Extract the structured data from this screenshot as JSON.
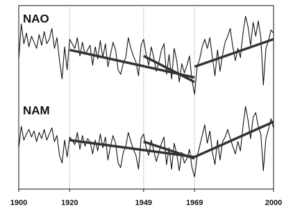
{
  "chart_data": [
    {
      "type": "line",
      "xlim": [
        1900,
        2000
      ],
      "ylim": [
        -3,
        3
      ],
      "vlines": [
        1920,
        1949,
        1969
      ],
      "x": [
        1900,
        1901,
        1902,
        1903,
        1904,
        1905,
        1906,
        1907,
        1908,
        1909,
        1910,
        1911,
        1912,
        1913,
        1914,
        1915,
        1916,
        1917,
        1918,
        1919,
        1920,
        1921,
        1922,
        1923,
        1924,
        1925,
        1926,
        1927,
        1928,
        1929,
        1930,
        1931,
        1932,
        1933,
        1934,
        1935,
        1936,
        1937,
        1938,
        1939,
        1940,
        1941,
        1942,
        1943,
        1944,
        1945,
        1946,
        1947,
        1948,
        1949,
        1950,
        1951,
        1952,
        1953,
        1954,
        1955,
        1956,
        1957,
        1958,
        1959,
        1960,
        1961,
        1962,
        1963,
        1964,
        1965,
        1966,
        1967,
        1968,
        1969,
        1970,
        1971,
        1972,
        1973,
        1974,
        1975,
        1976,
        1977,
        1978,
        1979,
        1980,
        1981,
        1982,
        1983,
        1984,
        1985,
        1986,
        1987,
        1988,
        1989,
        1990,
        1991,
        1992,
        1993,
        1994,
        1995,
        1996,
        1997,
        1998,
        1999,
        2000
      ],
      "series": [
        {
          "name": "NAO",
          "color": "#111111",
          "values": [
            -0.5,
            1.8,
            0.5,
            1.2,
            0.3,
            1.0,
            0.6,
            0.2,
            1.1,
            0.4,
            1.3,
            0.5,
            0.8,
            1.5,
            0.2,
            0.9,
            -0.6,
            -1.8,
            0.3,
            -1.2,
            0.8,
            0.5,
            0.2,
            0.9,
            -0.3,
            0.6,
            -0.2,
            0.1,
            0.4,
            -0.9,
            0.3,
            -0.5,
            0.7,
            -0.4,
            0.5,
            -1.0,
            -0.2,
            0.6,
            0.1,
            -1.2,
            -1.5,
            -0.8,
            -0.4,
            0.9,
            0.2,
            -0.3,
            -0.7,
            -1.6,
            0.4,
            0.8,
            -0.2,
            -0.9,
            0.3,
            -0.4,
            -1.3,
            -0.7,
            0.1,
            0.5,
            -1.5,
            -0.2,
            -1.8,
            0.2,
            -0.6,
            -2.0,
            -0.8,
            -1.4,
            -0.9,
            -0.3,
            -1.9,
            -2.8,
            -1.0,
            -0.5,
            0.3,
            0.8,
            0.2,
            0.9,
            -0.4,
            -1.6,
            0.1,
            -1.3,
            -0.2,
            0.6,
            1.0,
            1.5,
            0.3,
            -0.6,
            0.2,
            -0.4,
            1.2,
            2.3,
            1.6,
            0.4,
            1.9,
            1.0,
            2.0,
            0.9,
            -2.2,
            0.2,
            0.7,
            1.4,
            1.2
          ]
        }
      ],
      "trends": [
        {
          "color": "#333333",
          "x": [
            1920,
            1969
          ],
          "values": [
            0.1,
            -1.7
          ]
        },
        {
          "color": "#333333",
          "x": [
            1949,
            1969
          ],
          "values": [
            -0.3,
            -2.0
          ]
        },
        {
          "color": "#333333",
          "x": [
            1969,
            2000
          ],
          "values": [
            -1.0,
            0.8
          ]
        }
      ]
    },
    {
      "type": "line",
      "xlim": [
        1900,
        2000
      ],
      "ylim": [
        -3,
        3
      ],
      "vlines": [
        1920,
        1949,
        1969
      ],
      "xticks": [
        1900,
        1920,
        1949,
        1969,
        2000
      ],
      "x": [
        1900,
        1901,
        1902,
        1903,
        1904,
        1905,
        1906,
        1907,
        1908,
        1909,
        1910,
        1911,
        1912,
        1913,
        1914,
        1915,
        1916,
        1917,
        1918,
        1919,
        1920,
        1921,
        1922,
        1923,
        1924,
        1925,
        1926,
        1927,
        1928,
        1929,
        1930,
        1931,
        1932,
        1933,
        1934,
        1935,
        1936,
        1937,
        1938,
        1939,
        1940,
        1941,
        1942,
        1943,
        1944,
        1945,
        1946,
        1947,
        1948,
        1949,
        1950,
        1951,
        1952,
        1953,
        1954,
        1955,
        1956,
        1957,
        1958,
        1959,
        1960,
        1961,
        1962,
        1963,
        1964,
        1965,
        1966,
        1967,
        1968,
        1969,
        1970,
        1971,
        1972,
        1973,
        1974,
        1975,
        1976,
        1977,
        1978,
        1979,
        1980,
        1981,
        1982,
        1983,
        1984,
        1985,
        1986,
        1987,
        1988,
        1989,
        1990,
        1991,
        1992,
        1993,
        1994,
        1995,
        1996,
        1997,
        1998,
        1999,
        2000
      ],
      "series": [
        {
          "name": "NAM",
          "color": "#111111",
          "values": [
            -0.3,
            1.1,
            0.2,
            0.6,
            0.9,
            0.4,
            0.8,
            0.1,
            0.7,
            0.3,
            0.9,
            0.2,
            0.6,
            1.0,
            0.1,
            0.5,
            -0.8,
            -1.3,
            0.2,
            -0.9,
            0.4,
            0.2,
            -0.1,
            0.7,
            -0.4,
            0.5,
            -0.2,
            0.3,
            0.1,
            -0.7,
            0.2,
            -0.5,
            0.6,
            -0.3,
            0.4,
            -1.1,
            -0.2,
            0.5,
            0.0,
            -1.3,
            -1.6,
            -0.6,
            -0.2,
            0.7,
            0.1,
            -0.4,
            -0.8,
            -1.7,
            0.3,
            0.6,
            -0.3,
            -0.8,
            0.2,
            -0.5,
            -1.2,
            -0.6,
            0.0,
            0.4,
            -1.4,
            -0.3,
            -1.7,
            0.0,
            -0.7,
            -1.8,
            -0.6,
            -1.3,
            -1.0,
            -0.4,
            -1.6,
            -2.2,
            -0.9,
            -0.2,
            0.5,
            1.2,
            0.0,
            0.8,
            -0.6,
            -1.4,
            0.2,
            -1.1,
            0.1,
            0.4,
            0.9,
            0.3,
            -0.2,
            -0.7,
            0.1,
            -0.5,
            1.1,
            2.4,
            1.5,
            0.3,
            1.7,
            2.0,
            1.1,
            0.6,
            -1.8,
            0.3,
            0.9,
            1.6,
            1.0
          ]
        }
      ],
      "trends": [
        {
          "color": "#333333",
          "x": [
            1920,
            1969
          ],
          "values": [
            0.2,
            -0.9
          ]
        },
        {
          "color": "#333333",
          "x": [
            1949,
            1969
          ],
          "values": [
            0.1,
            -1.0
          ]
        },
        {
          "color": "#333333",
          "x": [
            1969,
            2000
          ],
          "values": [
            -0.9,
            1.4
          ]
        }
      ]
    }
  ]
}
